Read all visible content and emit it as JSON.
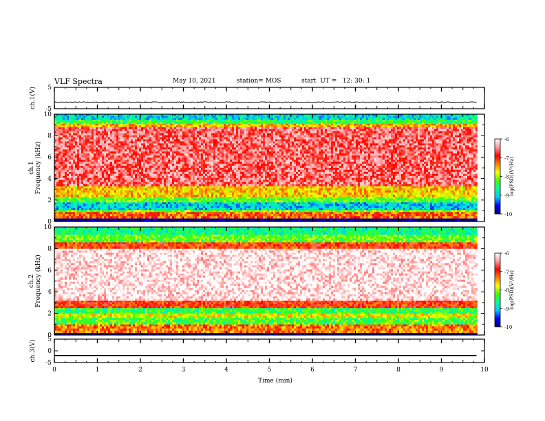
{
  "header": {
    "title": "VLF Spectra",
    "date": "May 10, 2021",
    "station": "station= MOS",
    "start_time": "start  UT =   12: 30: 1"
  },
  "chart_data": {
    "type": "heatmap",
    "title": "VLF Spectra",
    "xlabel": "Time  (min)",
    "xlim": [
      0,
      10
    ],
    "x_ticks": [
      "0",
      "1",
      "2",
      "3",
      "4",
      "5",
      "6",
      "7",
      "8",
      "9",
      "10"
    ],
    "data_end_min": 9.83,
    "panels": [
      {
        "kind": "waveform",
        "ylabel": "ch.1(V)",
        "ylim": [
          -5,
          5
        ],
        "y_ticks": [
          "5",
          "-5"
        ],
        "baseline": -2.0,
        "noise": 0.25
      },
      {
        "kind": "spectrogram",
        "ylabel": "ch.1\nFrequency (kHz)",
        "ylim": [
          0,
          10
        ],
        "y_ticks": [
          "0",
          "2",
          "4",
          "6",
          "8",
          "10"
        ],
        "bands": [
          {
            "from": 0.0,
            "to": 0.3,
            "level": -10.0
          },
          {
            "from": 0.3,
            "to": 0.9,
            "level": -7.2
          },
          {
            "from": 0.9,
            "to": 1.1,
            "level": -8.2
          },
          {
            "from": 1.1,
            "to": 1.8,
            "level": -9.0
          },
          {
            "from": 1.8,
            "to": 2.3,
            "level": -8.2
          },
          {
            "from": 2.3,
            "to": 3.3,
            "level": -7.6
          },
          {
            "from": 3.3,
            "to": 8.8,
            "level": -6.6
          },
          {
            "from": 8.8,
            "to": 9.1,
            "level": -7.5
          },
          {
            "from": 9.1,
            "to": 9.5,
            "level": -8.4
          },
          {
            "from": 9.5,
            "to": 10.0,
            "level": -8.9
          }
        ]
      },
      {
        "kind": "spectrogram",
        "ylabel": "ch.2\nFrequency (kHz)",
        "ylim": [
          0,
          10
        ],
        "y_ticks": [
          "0",
          "2",
          "4",
          "6",
          "8",
          "10"
        ],
        "bands": [
          {
            "from": 0.0,
            "to": 0.2,
            "level": -10.0
          },
          {
            "from": 0.2,
            "to": 1.0,
            "level": -7.3
          },
          {
            "from": 1.0,
            "to": 1.6,
            "level": -8.3
          },
          {
            "from": 1.6,
            "to": 2.0,
            "level": -7.8
          },
          {
            "from": 2.0,
            "to": 2.5,
            "level": -8.4
          },
          {
            "from": 2.5,
            "to": 3.2,
            "level": -7.0
          },
          {
            "from": 3.2,
            "to": 8.0,
            "level": -6.1
          },
          {
            "from": 8.0,
            "to": 8.6,
            "level": -7.0
          },
          {
            "from": 8.6,
            "to": 9.3,
            "level": -8.2
          },
          {
            "from": 9.3,
            "to": 10.0,
            "level": -8.6
          }
        ]
      },
      {
        "kind": "waveform",
        "ylabel": "ch.3(V)",
        "ylim": [
          -5,
          5
        ],
        "y_ticks": [
          "5",
          "0",
          "-5"
        ],
        "baseline": -2.0,
        "noise": 0.0
      }
    ],
    "colorbar": {
      "label": "log(PSD)(V²/Hz)",
      "range": [
        -10,
        -6
      ],
      "ticks": [
        "-6",
        "-7",
        "-8",
        "-9",
        "-10"
      ],
      "colors": [
        "#000080",
        "#0000ff",
        "#00c8ff",
        "#00ffa0",
        "#40ff00",
        "#ffff00",
        "#ff8000",
        "#ff0000",
        "#ff9a9a",
        "#ffffff"
      ]
    }
  }
}
